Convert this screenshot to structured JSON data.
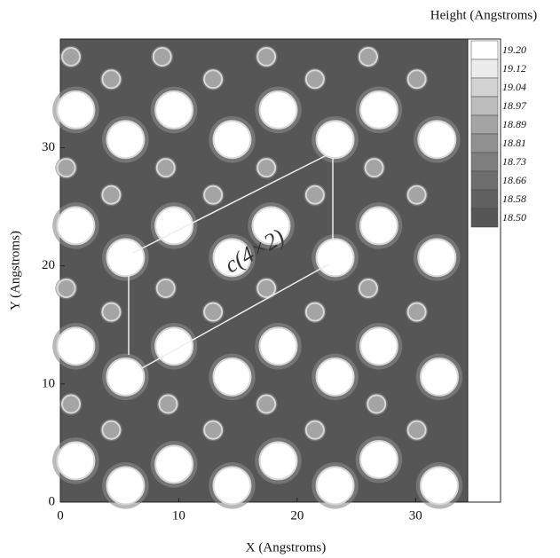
{
  "chart_data": {
    "type": "contour",
    "colorbar_title": "Height (Angstroms)",
    "xlabel": "X (Angstroms)",
    "ylabel": "Y (Angstroms)",
    "annotation": "c(4×2)",
    "xlim": [
      0,
      34.4
    ],
    "ylim": [
      0,
      39.2
    ],
    "xticks": [
      0,
      10,
      20,
      30
    ],
    "yticks": [
      0,
      10,
      20,
      30
    ],
    "background": "#565656",
    "colorbar_ticks": [
      {
        "value": 19.2,
        "label": "19.20"
      },
      {
        "value": 19.12,
        "label": "19.12"
      },
      {
        "value": 19.04,
        "label": "19.04"
      },
      {
        "value": 18.97,
        "label": "18.97"
      },
      {
        "value": 18.89,
        "label": "18.89"
      },
      {
        "value": 18.81,
        "label": "18.81"
      },
      {
        "value": 18.73,
        "label": "18.73"
      },
      18.66,
      {
        "value": 18.58,
        "label": "18.58"
      },
      {
        "value": 18.5,
        "label": "18.50"
      }
    ],
    "colorbar_colors": [
      "#ffffff",
      "#ececec",
      "#d2d2d2",
      "#bcbcbc",
      "#a4a4a4",
      "#909090",
      "#7e7e7e",
      "#6e6e6e",
      "#616161",
      "#565656"
    ],
    "series": [
      {
        "color": "#ffffff",
        "size": 21,
        "x": [
          5.5,
          14.5,
          23.2,
          32,
          1.3,
          9.6,
          18.4,
          26.9,
          5.5,
          14.5,
          23.2,
          32,
          1.3,
          9.6,
          18.4,
          26.9,
          5.5,
          14.5,
          23.2,
          31.8,
          1.3,
          9.6,
          17.8,
          26.9,
          5.5,
          14.5,
          23.2,
          31.8,
          1.3,
          9.6,
          18.4,
          26.9
        ],
        "y": [
          1.4,
          1.4,
          1.4,
          1.4,
          3.5,
          3.2,
          3.5,
          3.6,
          10.6,
          10.6,
          10.6,
          10.6,
          13.2,
          13.2,
          13.2,
          13.2,
          20.7,
          20.7,
          20.7,
          20.7,
          23.4,
          23.4,
          23.4,
          23.4,
          30.7,
          30.7,
          30.7,
          30.7,
          33.2,
          33.2,
          33.2,
          33.2
        ]
      },
      {
        "color": "#a4a4a4",
        "size": 10,
        "x": [
          0.9,
          8.6,
          17.4,
          26,
          4.3,
          12.9,
          21.5,
          30.1,
          0.5,
          8.9,
          17.4,
          26.5,
          4.3,
          12.9,
          21.5,
          30.1,
          0.5,
          8.9,
          17.4,
          26,
          4.3,
          12.9,
          21.5,
          30.1,
          0.9,
          9.1,
          17.4,
          26.7,
          4.3,
          12.9,
          21.5,
          30.1
        ],
        "y": [
          37.7,
          37.7,
          37.7,
          37.7,
          35.8,
          35.8,
          35.8,
          35.8,
          28.3,
          28.3,
          28.3,
          28.3,
          26,
          26,
          26,
          26,
          18.1,
          18.1,
          18.1,
          18.1,
          16.1,
          16.1,
          16.1,
          16.1,
          8.3,
          8.3,
          8.3,
          8.3,
          6.1,
          6.1,
          6.1,
          6.1
        ]
      }
    ]
  }
}
